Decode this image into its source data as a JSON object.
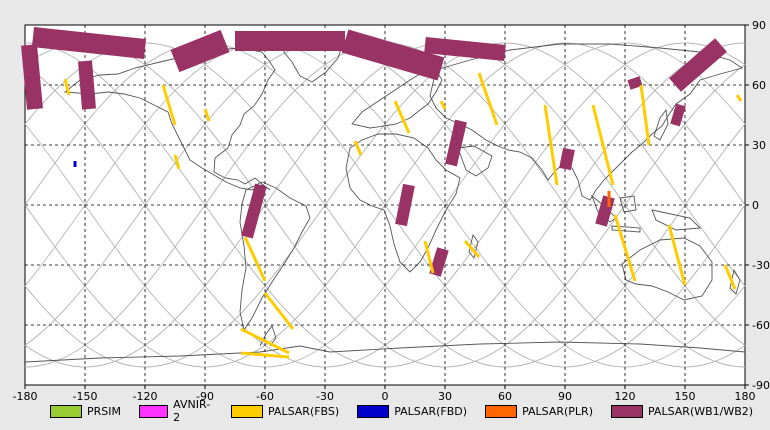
{
  "x_ticks": [
    "-180",
    "-150",
    "-120",
    "-90",
    "-60",
    "-30",
    "0",
    "30",
    "60",
    "90",
    "120",
    "150",
    "180"
  ],
  "y_ticks": [
    "90",
    "60",
    "30",
    "0",
    "-30",
    "-60",
    "-90"
  ],
  "legend": [
    {
      "label": "PRSIM",
      "color": "#99cc33"
    },
    {
      "label": "AVNIR-2",
      "color": "#ff33ff"
    },
    {
      "label": "PALSAR(FBS)",
      "color": "#ffcc00"
    },
    {
      "label": "PALSAR(FBD)",
      "color": "#0000cc"
    },
    {
      "label": "PALSAR(PLR)",
      "color": "#ff6600"
    },
    {
      "label": "PALSAR(WB1/WB2)",
      "color": "#993366"
    }
  ],
  "colors": {
    "background": "#e8e8e8",
    "map": "#ffffff",
    "grid": "#000000",
    "orbit": "#b4b4b4",
    "coast": "#555555",
    "wb": "#993366",
    "fbs": "#ffcc00",
    "fbd": "#0000cc",
    "plr": "#ff6600"
  },
  "swaths_wb": [
    {
      "lon1": -178,
      "lat1": 80,
      "lon2": -175,
      "lat2": 48,
      "w": 8
    },
    {
      "lon1": -150,
      "lat1": 72,
      "lon2": -148,
      "lat2": 48,
      "w": 7
    },
    {
      "lon1": -120,
      "lat1": 78,
      "lon2": -176,
      "lat2": 84,
      "w": 10
    },
    {
      "lon1": -75,
      "lat1": 82,
      "lon2": -20,
      "lat2": 82,
      "w": 10
    },
    {
      "lon1": -105,
      "lat1": 72,
      "lon2": -80,
      "lat2": 82,
      "w": 12
    },
    {
      "lon1": -20,
      "lat1": 82,
      "lon2": 28,
      "lat2": 68,
      "w": 12
    },
    {
      "lon1": 20,
      "lat1": 80,
      "lon2": 60,
      "lat2": 76,
      "w": 8
    },
    {
      "lon1": 145,
      "lat1": 60,
      "lon2": 168,
      "lat2": 80,
      "w": 9
    },
    {
      "lon1": 122,
      "lat1": 60,
      "lon2": 128,
      "lat2": 62,
      "w": 5
    },
    {
      "lon1": 148,
      "lat1": 50,
      "lon2": 145,
      "lat2": 40,
      "w": 5
    },
    {
      "lon1": -62,
      "lat1": 10,
      "lon2": -69,
      "lat2": -16,
      "w": 6
    },
    {
      "lon1": 38,
      "lat1": 42,
      "lon2": 33,
      "lat2": 20,
      "w": 6
    },
    {
      "lon1": 12,
      "lat1": 10,
      "lon2": 8,
      "lat2": -10,
      "w": 6
    },
    {
      "lon1": 29,
      "lat1": -22,
      "lon2": 25,
      "lat2": -35,
      "w": 6
    },
    {
      "lon1": 92,
      "lat1": 28,
      "lon2": 90,
      "lat2": 18,
      "w": 6
    },
    {
      "lon1": 112,
      "lat1": 4,
      "lon2": 108,
      "lat2": -10,
      "w": 6
    }
  ],
  "swaths_fbs": [
    {
      "lon1": -160,
      "lat1": 63,
      "lon2": -158,
      "lat2": 55
    },
    {
      "lon1": -111,
      "lat1": 60,
      "lon2": -105,
      "lat2": 40
    },
    {
      "lon1": -105,
      "lat1": 25,
      "lon2": -103,
      "lat2": 18
    },
    {
      "lon1": -90,
      "lat1": 48,
      "lon2": -88,
      "lat2": 42
    },
    {
      "lon1": -70,
      "lat1": -16,
      "lon2": -60,
      "lat2": -38
    },
    {
      "lon1": -60,
      "lat1": -44,
      "lon2": -46,
      "lat2": -62
    },
    {
      "lon1": -72,
      "lat1": -62,
      "lon2": -48,
      "lat2": -74
    },
    {
      "lon1": -72,
      "lat1": -74,
      "lon2": -48,
      "lat2": -76
    },
    {
      "lon1": -15,
      "lat1": 32,
      "lon2": -12,
      "lat2": 25
    },
    {
      "lon1": 5,
      "lat1": 52,
      "lon2": 12,
      "lat2": 36
    },
    {
      "lon1": 28,
      "lat1": 52,
      "lon2": 30,
      "lat2": 48
    },
    {
      "lon1": 47,
      "lat1": 66,
      "lon2": 56,
      "lat2": 40
    },
    {
      "lon1": 40,
      "lat1": -18,
      "lon2": 47,
      "lat2": -26
    },
    {
      "lon1": 20,
      "lat1": -18,
      "lon2": 24,
      "lat2": -34
    },
    {
      "lon1": 80,
      "lat1": 50,
      "lon2": 86,
      "lat2": 10
    },
    {
      "lon1": 104,
      "lat1": 50,
      "lon2": 114,
      "lat2": 10
    },
    {
      "lon1": 128,
      "lat1": 60,
      "lon2": 132,
      "lat2": 30
    },
    {
      "lon1": 115,
      "lat1": -5,
      "lon2": 125,
      "lat2": -38
    },
    {
      "lon1": 142,
      "lat1": -10,
      "lon2": 150,
      "lat2": -40
    },
    {
      "lon1": 170,
      "lat1": -30,
      "lon2": 175,
      "lat2": -42
    },
    {
      "lon1": 176,
      "lat1": 55,
      "lon2": 178,
      "lat2": 52
    }
  ],
  "swaths_fbd": [
    {
      "lon1": -155,
      "lat1": 22,
      "lon2": -155,
      "lat2": 19
    }
  ],
  "swaths_plr": [
    {
      "lon1": 112,
      "lat1": 7,
      "lon2": 112,
      "lat2": -1
    }
  ]
}
